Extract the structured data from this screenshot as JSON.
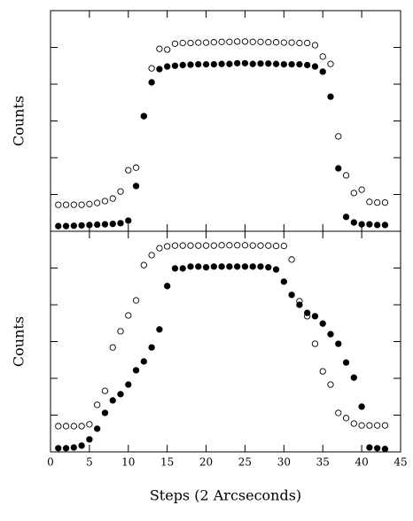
{
  "chart_data": [
    {
      "type": "scatter",
      "ylabel": "Counts",
      "x": [
        1,
        2,
        3,
        4,
        5,
        6,
        7,
        8,
        9,
        10,
        11,
        12,
        13,
        14,
        15,
        16,
        17,
        18,
        19,
        20,
        21,
        22,
        23,
        24,
        25,
        26,
        27,
        28,
        29,
        30,
        31,
        32,
        33,
        34,
        35,
        36,
        37,
        38,
        39,
        40,
        41,
        42,
        43
      ],
      "xlim": [
        0,
        45
      ],
      "xticks": [
        0,
        5,
        10,
        15,
        20,
        25,
        30,
        35,
        40,
        45
      ],
      "xtick_labels": false,
      "ylim": [
        0,
        6
      ],
      "yticks": [
        1,
        2,
        3,
        4,
        5
      ],
      "ytick_labels": false,
      "series": [
        {
          "marker": "open",
          "color": "#000000",
          "values": [
            0.72,
            0.72,
            0.72,
            0.72,
            0.74,
            0.77,
            0.82,
            0.89,
            1.08,
            1.66,
            1.73,
            3.13,
            4.43,
            4.96,
            4.94,
            5.1,
            5.12,
            5.12,
            5.13,
            5.13,
            5.14,
            5.15,
            5.15,
            5.16,
            5.16,
            5.15,
            5.15,
            5.14,
            5.14,
            5.13,
            5.13,
            5.12,
            5.12,
            5.06,
            4.75,
            4.55,
            2.58,
            1.52,
            1.04,
            1.13,
            0.8,
            0.78,
            0.78
          ]
        },
        {
          "marker": "filled",
          "color": "#000000",
          "values": [
            0.14,
            0.14,
            0.15,
            0.16,
            0.17,
            0.18,
            0.19,
            0.2,
            0.22,
            0.29,
            1.23,
            3.13,
            4.05,
            4.41,
            4.48,
            4.5,
            4.52,
            4.53,
            4.54,
            4.54,
            4.54,
            4.55,
            4.55,
            4.57,
            4.57,
            4.55,
            4.56,
            4.56,
            4.55,
            4.54,
            4.54,
            4.54,
            4.52,
            4.48,
            4.34,
            3.66,
            1.71,
            0.39,
            0.24,
            0.19,
            0.19,
            0.17,
            0.17
          ]
        }
      ]
    },
    {
      "type": "scatter",
      "ylabel": "Counts",
      "xlabel": "Steps (2 Arcseconds)",
      "x": [
        1,
        2,
        3,
        4,
        5,
        6,
        7,
        8,
        9,
        10,
        11,
        12,
        13,
        14,
        15,
        16,
        17,
        18,
        19,
        20,
        21,
        22,
        23,
        24,
        25,
        26,
        27,
        28,
        29,
        30,
        31,
        32,
        33,
        34,
        35,
        36,
        37,
        38,
        39,
        40,
        41,
        42,
        43
      ],
      "xlim": [
        0,
        45
      ],
      "xticks": [
        0,
        5,
        10,
        15,
        20,
        25,
        30,
        35,
        40,
        45
      ],
      "xtick_labels": true,
      "ylim": [
        0,
        6
      ],
      "yticks": [
        1,
        2,
        3,
        4,
        5
      ],
      "ytick_labels": false,
      "series": [
        {
          "marker": "open",
          "color": "#000000",
          "values": [
            0.7,
            0.7,
            0.7,
            0.7,
            0.75,
            1.28,
            1.66,
            2.84,
            3.28,
            3.71,
            4.12,
            5.08,
            5.35,
            5.54,
            5.59,
            5.61,
            5.61,
            5.61,
            5.61,
            5.61,
            5.61,
            5.62,
            5.62,
            5.62,
            5.62,
            5.61,
            5.61,
            5.61,
            5.6,
            5.6,
            5.23,
            4.1,
            3.69,
            2.94,
            2.19,
            1.83,
            1.06,
            0.92,
            0.77,
            0.72,
            0.72,
            0.72,
            0.72
          ]
        },
        {
          "marker": "filled",
          "color": "#000000",
          "values": [
            0.1,
            0.1,
            0.12,
            0.17,
            0.34,
            0.63,
            1.06,
            1.4,
            1.57,
            1.83,
            2.22,
            2.46,
            2.84,
            3.33,
            4.51,
            4.99,
            4.99,
            5.04,
            5.04,
            5.02,
            5.04,
            5.04,
            5.04,
            5.04,
            5.04,
            5.04,
            5.04,
            5.02,
            4.96,
            4.63,
            4.27,
            4.0,
            3.78,
            3.69,
            3.49,
            3.2,
            2.94,
            2.43,
            2.02,
            1.23,
            0.12,
            0.1,
            0.08
          ]
        }
      ]
    }
  ]
}
